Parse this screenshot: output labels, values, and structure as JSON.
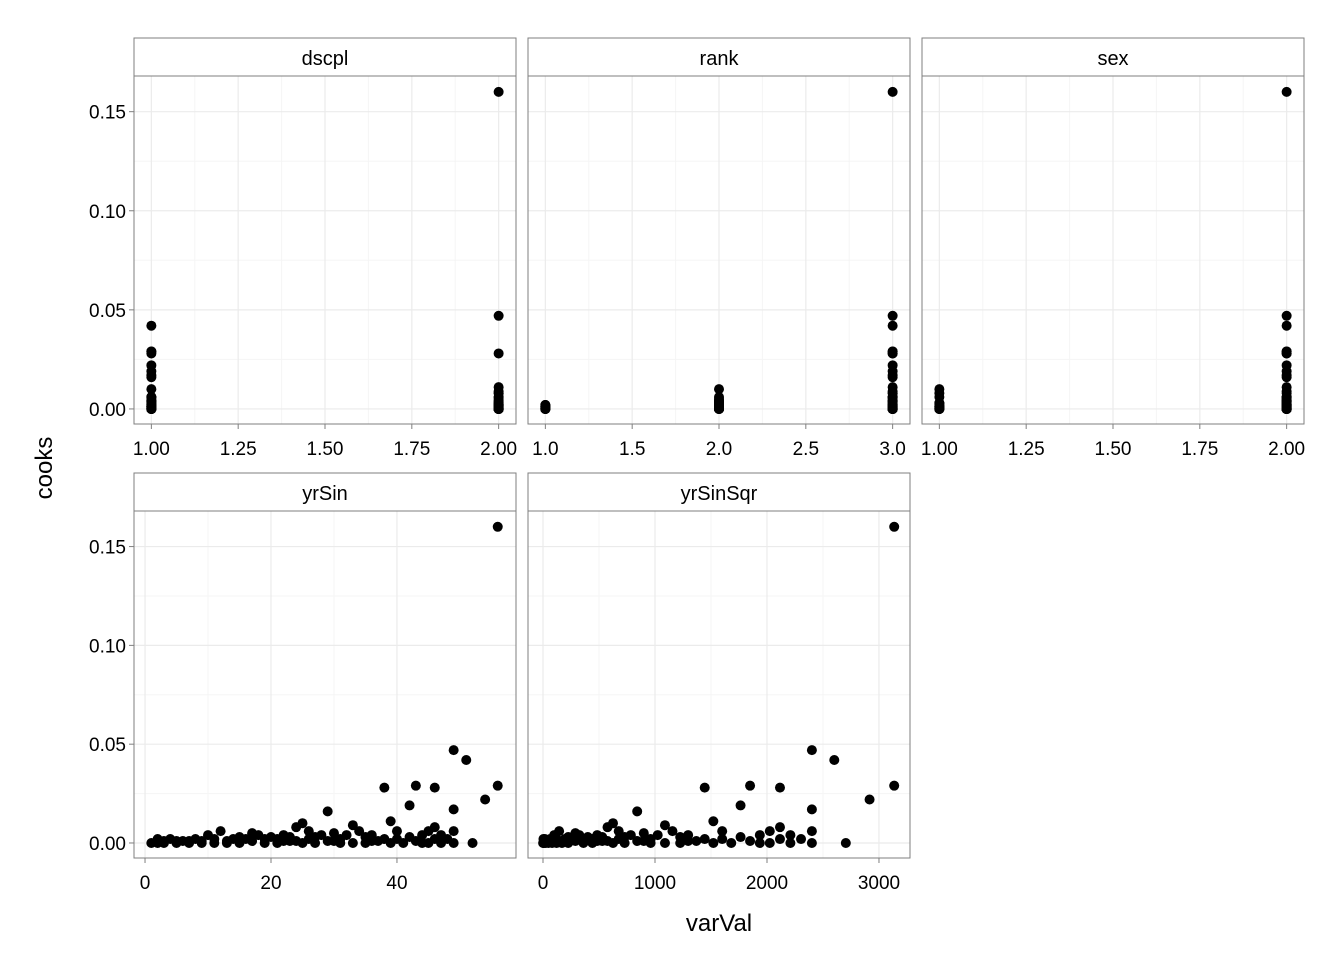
{
  "chart_data": {
    "type": "scatter",
    "xlabel": "varVal",
    "ylabel": "cooks",
    "ylim": [
      -0.0076,
      0.168
    ],
    "yticks": [
      0,
      0.05,
      0.1,
      0.15
    ],
    "ytick_labels": [
      "0.00",
      "0.05",
      "0.10",
      "0.15"
    ],
    "grid": true,
    "facets": [
      {
        "name": "dscpl",
        "field": "dscpl",
        "xlim": [
          0.95,
          2.05
        ],
        "xticks": [
          1,
          1.25,
          1.5,
          1.75,
          2
        ],
        "xtick_labels": [
          "1.00",
          "1.25",
          "1.50",
          "1.75",
          "2.00"
        ]
      },
      {
        "name": "rank",
        "field": "rank",
        "xlim": [
          0.9,
          3.1
        ],
        "xticks": [
          1,
          1.5,
          2,
          2.5,
          3
        ],
        "xtick_labels": [
          "1.0",
          "1.5",
          "2.0",
          "2.5",
          "3.0"
        ]
      },
      {
        "name": "sex",
        "field": "sex",
        "xlim": [
          0.95,
          2.05
        ],
        "xticks": [
          1,
          1.25,
          1.5,
          1.75,
          2
        ],
        "xtick_labels": [
          "1.00",
          "1.25",
          "1.50",
          "1.75",
          "2.00"
        ]
      },
      {
        "name": "yrSin",
        "field": "yrSin",
        "xlim": [
          -1.75,
          58.9
        ],
        "xticks": [
          0,
          20,
          40
        ],
        "xtick_labels": [
          "0",
          "20",
          "40"
        ]
      },
      {
        "name": "yrSinSqr",
        "field": "yrSinSqr",
        "xlim": [
          -134,
          3277
        ],
        "xticks": [
          0,
          1000,
          2000,
          3000
        ],
        "xtick_labels": [
          "0",
          "1000",
          "2000",
          "3000"
        ]
      }
    ],
    "observation_fields": [
      "yrSin",
      "cooks",
      "dscpl",
      "rank",
      "sex"
    ],
    "observations": [
      [
        56,
        0.16,
        2,
        3,
        2
      ],
      [
        49,
        0.047,
        2,
        3,
        2
      ],
      [
        51,
        0.042,
        1,
        3,
        2
      ],
      [
        56,
        0.029,
        1,
        3,
        2
      ],
      [
        43,
        0.029,
        1,
        3,
        2
      ],
      [
        38,
        0.028,
        2,
        3,
        2
      ],
      [
        46,
        0.028,
        1,
        3,
        2
      ],
      [
        54,
        0.022,
        1,
        3,
        2
      ],
      [
        42,
        0.019,
        1,
        3,
        2
      ],
      [
        49,
        0.017,
        1,
        3,
        2
      ],
      [
        29,
        0.016,
        1,
        3,
        2
      ],
      [
        39,
        0.011,
        2,
        3,
        2
      ],
      [
        25,
        0.01,
        1,
        2,
        1
      ],
      [
        33,
        0.009,
        2,
        3,
        2
      ],
      [
        46,
        0.008,
        2,
        3,
        1
      ],
      [
        45,
        0.006,
        1,
        3,
        2
      ],
      [
        49,
        0.006,
        2,
        3,
        2
      ],
      [
        52,
        0.0,
        2,
        3,
        2
      ],
      [
        49,
        0.0,
        1,
        3,
        2
      ],
      [
        24,
        0.008,
        2,
        3,
        2
      ],
      [
        30,
        0.005,
        1,
        3,
        2
      ],
      [
        12,
        0.006,
        1,
        2,
        2
      ],
      [
        17,
        0.005,
        2,
        2,
        2
      ],
      [
        40,
        0.006,
        1,
        3,
        1
      ],
      [
        44,
        0.004,
        2,
        3,
        2
      ],
      [
        47,
        0.004,
        1,
        3,
        2
      ],
      [
        48,
        0.002,
        2,
        3,
        2
      ],
      [
        36,
        0.004,
        2,
        3,
        2
      ],
      [
        35,
        0.003,
        1,
        3,
        1
      ],
      [
        34,
        0.006,
        2,
        3,
        2
      ],
      [
        32,
        0.004,
        1,
        3,
        2
      ],
      [
        31,
        0.002,
        2,
        3,
        1
      ],
      [
        28,
        0.004,
        1,
        3,
        2
      ],
      [
        27,
        0.003,
        2,
        2,
        2
      ],
      [
        26,
        0.006,
        1,
        3,
        2
      ],
      [
        23,
        0.003,
        2,
        2,
        1
      ],
      [
        22,
        0.004,
        1,
        2,
        2
      ],
      [
        21,
        0.002,
        2,
        2,
        2
      ],
      [
        20,
        0.003,
        1,
        2,
        1
      ],
      [
        19,
        0.002,
        2,
        2,
        2
      ],
      [
        18,
        0.004,
        1,
        2,
        2
      ],
      [
        16,
        0.002,
        2,
        2,
        1
      ],
      [
        15,
        0.003,
        1,
        2,
        2
      ],
      [
        14,
        0.002,
        2,
        2,
        2
      ],
      [
        13,
        0.001,
        1,
        2,
        1
      ],
      [
        11,
        0.002,
        2,
        2,
        2
      ],
      [
        10,
        0.004,
        1,
        2,
        2
      ],
      [
        9,
        0.001,
        2,
        1,
        1
      ],
      [
        8,
        0.002,
        1,
        1,
        2
      ],
      [
        7,
        0.001,
        2,
        1,
        2
      ],
      [
        6,
        0.001,
        1,
        1,
        1
      ],
      [
        5,
        0.0,
        2,
        1,
        2
      ],
      [
        4,
        0.002,
        1,
        1,
        2
      ],
      [
        3,
        0.001,
        2,
        1,
        1
      ],
      [
        2,
        0.002,
        1,
        1,
        2
      ],
      [
        1,
        0.0,
        2,
        1,
        2
      ],
      [
        2,
        0.0,
        1,
        1,
        1
      ],
      [
        3,
        0.0,
        2,
        1,
        2
      ],
      [
        5,
        0.001,
        1,
        1,
        2
      ],
      [
        7,
        0.0,
        2,
        1,
        2
      ],
      [
        9,
        0.0,
        1,
        1,
        1
      ],
      [
        11,
        0.0,
        2,
        2,
        2
      ],
      [
        13,
        0.0,
        1,
        2,
        2
      ],
      [
        15,
        0.0,
        2,
        2,
        1
      ],
      [
        17,
        0.001,
        1,
        2,
        2
      ],
      [
        19,
        0.0,
        2,
        2,
        2
      ],
      [
        21,
        0.0,
        1,
        2,
        1
      ],
      [
        23,
        0.001,
        2,
        3,
        2
      ],
      [
        25,
        0.0,
        1,
        3,
        2
      ],
      [
        27,
        0.0,
        2,
        3,
        2
      ],
      [
        29,
        0.001,
        1,
        3,
        1
      ],
      [
        31,
        0.0,
        2,
        3,
        2
      ],
      [
        33,
        0.0,
        1,
        3,
        2
      ],
      [
        35,
        0.0,
        2,
        3,
        2
      ],
      [
        37,
        0.001,
        1,
        3,
        2
      ],
      [
        39,
        0.0,
        2,
        3,
        1
      ],
      [
        41,
        0.0,
        1,
        3,
        2
      ],
      [
        43,
        0.001,
        2,
        3,
        2
      ],
      [
        45,
        0.0,
        1,
        3,
        2
      ],
      [
        47,
        0.0,
        2,
        3,
        2
      ],
      [
        40,
        0.002,
        1,
        3,
        2
      ],
      [
        42,
        0.003,
        2,
        3,
        2
      ],
      [
        38,
        0.002,
        1,
        3,
        2
      ],
      [
        26,
        0.002,
        2,
        3,
        2
      ],
      [
        24,
        0.001,
        1,
        3,
        2
      ],
      [
        44,
        0.0,
        2,
        3,
        2
      ],
      [
        36,
        0.001,
        1,
        3,
        2
      ],
      [
        46,
        0.002,
        2,
        3,
        2
      ],
      [
        30,
        0.001,
        2,
        3,
        2
      ],
      [
        22,
        0.001,
        1,
        2,
        2
      ]
    ]
  }
}
